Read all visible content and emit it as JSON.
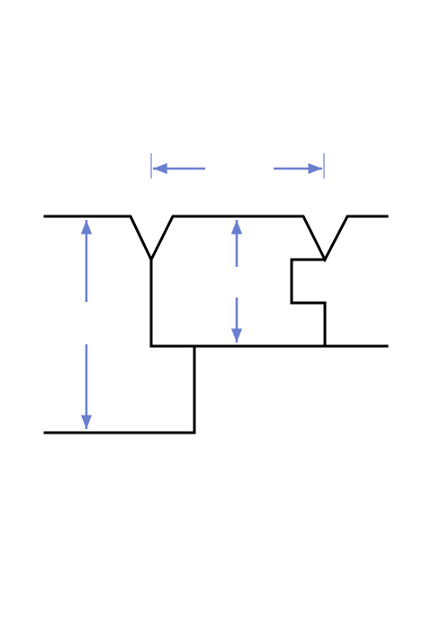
{
  "diagram": {
    "colors": {
      "background": "#ffffff",
      "profile": "#000000",
      "dimension": "#6a7fd0",
      "extension": "#a9b5e3"
    },
    "elements": [
      "profile-outline",
      "horizontal-dimension",
      "vertical-dimension-left",
      "vertical-dimension-center"
    ]
  }
}
